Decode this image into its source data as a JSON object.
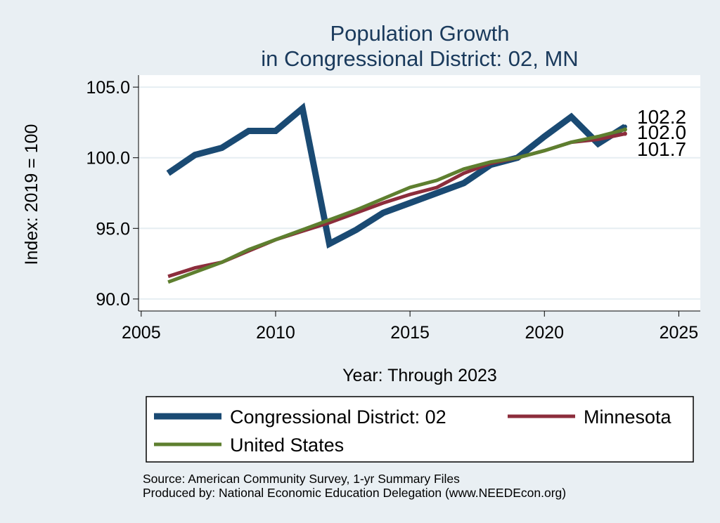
{
  "chart_data": {
    "type": "line",
    "title_lines": [
      "Population Growth",
      "in Congressional District: 02, MN"
    ],
    "xlabel": "Year: Through 2023",
    "ylabel": "Index: 2019 = 100",
    "xlim": [
      2004.9,
      2025.8
    ],
    "ylim": [
      89.15,
      105.85
    ],
    "x_ticks": [
      2005,
      2010,
      2015,
      2020,
      2025
    ],
    "y_ticks": [
      90.0,
      95.0,
      100.0,
      105.0
    ],
    "y_tick_labels": [
      "90.0",
      "95.0",
      "100.0",
      "105.0"
    ],
    "grid": true,
    "x": [
      2006,
      2007,
      2008,
      2009,
      2010,
      2011,
      2012,
      2013,
      2014,
      2015,
      2016,
      2017,
      2018,
      2019,
      2020,
      2021,
      2022,
      2023
    ],
    "series": [
      {
        "name": "Congressional District: 02",
        "color": "#1a4a73",
        "values": [
          98.9,
          100.2,
          100.7,
          101.9,
          101.9,
          103.5,
          93.9,
          94.9,
          96.1,
          96.8,
          97.5,
          98.2,
          99.5,
          100.0,
          101.5,
          102.9,
          101.0,
          102.2
        ]
      },
      {
        "name": "Minnesota",
        "color": "#8c2d3c",
        "values": [
          91.6,
          92.2,
          92.6,
          93.4,
          94.2,
          94.8,
          95.4,
          96.1,
          96.8,
          97.4,
          97.9,
          98.9,
          99.6,
          100.0,
          100.5,
          101.1,
          101.3,
          101.7
        ]
      },
      {
        "name": "United States",
        "color": "#5e7f2f",
        "values": [
          91.2,
          91.9,
          92.6,
          93.5,
          94.2,
          94.9,
          95.6,
          96.3,
          97.1,
          97.9,
          98.4,
          99.2,
          99.7,
          100.0,
          100.5,
          101.1,
          101.5,
          102.0
        ]
      }
    ],
    "end_labels": [
      "102.2",
      "102.0",
      "101.7"
    ],
    "legend": {
      "position": "bottom",
      "entries": [
        "Congressional District: 02",
        "Minnesota",
        "United States"
      ]
    }
  },
  "source_lines": [
    "Source: American Community Survey, 1-yr Summary Files",
    "Produced by: National Economic Education Delegation (www.NEEDEcon.org)"
  ]
}
